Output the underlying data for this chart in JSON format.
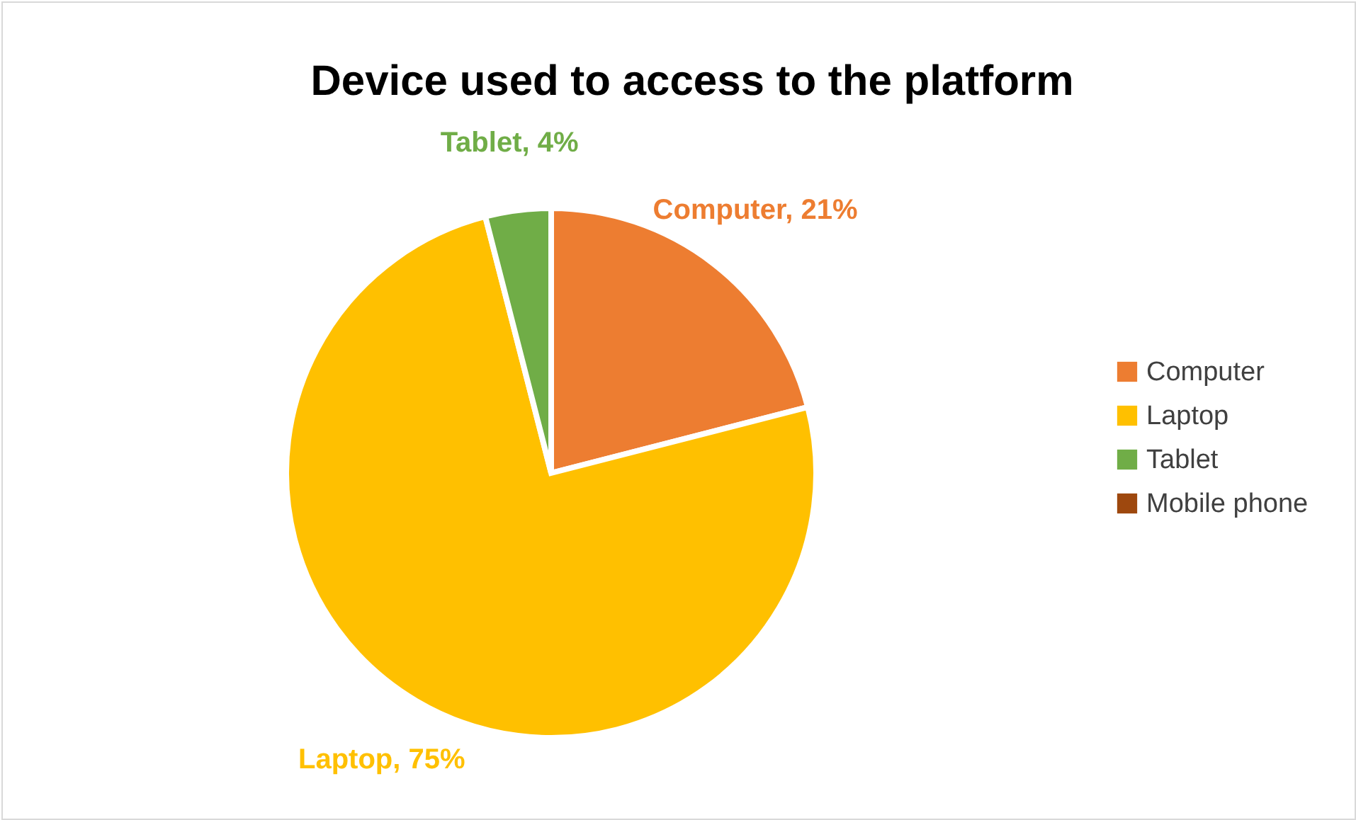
{
  "chart_data": {
    "type": "pie",
    "title": "Device used to access to the platform",
    "categories": [
      "Computer",
      "Laptop",
      "Tablet",
      "Mobile phone"
    ],
    "values": [
      21,
      75,
      4,
      0
    ],
    "colors": [
      "#ed7d31",
      "#ffc000",
      "#70ad47",
      "#9e480e"
    ],
    "value_labels": [
      "Computer, 21%",
      "Laptop, 75%",
      "Tablet, 4%",
      null
    ],
    "legend": "right"
  }
}
